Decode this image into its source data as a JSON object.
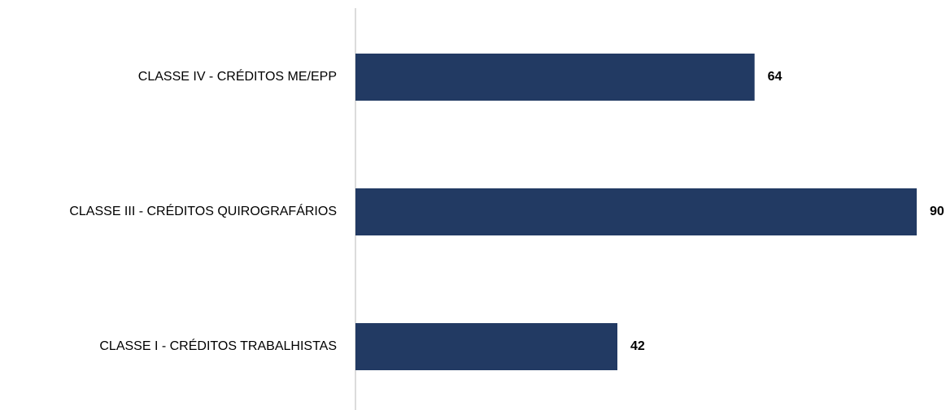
{
  "chart_data": {
    "type": "bar",
    "orientation": "horizontal",
    "categories": [
      "CLASSE IV - CRÉDITOS ME/EPP",
      "CLASSE III - CRÉDITOS QUIROGRAFÁRIOS",
      "CLASSE I - CRÉDITOS TRABALHISTAS"
    ],
    "values": [
      64,
      90,
      42
    ],
    "color": "#223a63",
    "xlim": [
      0,
      90
    ]
  }
}
